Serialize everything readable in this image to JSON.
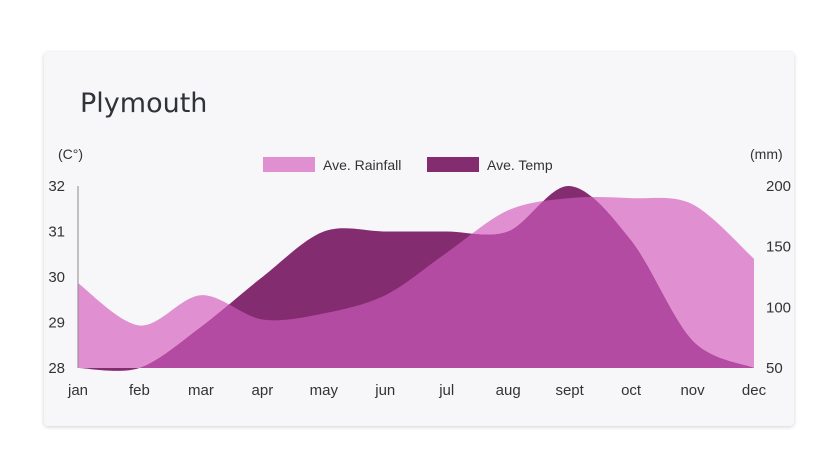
{
  "card": {
    "title": "Plymouth"
  },
  "chart_data": {
    "type": "area",
    "title": "Plymouth",
    "categories": [
      "jan",
      "feb",
      "mar",
      "apr",
      "may",
      "jun",
      "jul",
      "aug",
      "sept",
      "oct",
      "nov",
      "dec"
    ],
    "series": [
      {
        "name": "Ave. Rainfall",
        "axis": "right",
        "color": "#e08fd0",
        "values": [
          120,
          85,
          110,
          90,
          95,
          110,
          145,
          180,
          190,
          190,
          185,
          140
        ]
      },
      {
        "name": "Ave. Temp",
        "axis": "left",
        "color": "#842c70",
        "values": [
          28.0,
          28.0,
          28.9,
          30.0,
          31.0,
          31.0,
          31.0,
          31.0,
          32.0,
          30.8,
          28.6,
          28.0
        ]
      }
    ],
    "overlap_color": "#b44ba2",
    "y_left": {
      "label": "(C°)",
      "min": 28,
      "max": 32,
      "ticks": [
        28,
        29,
        30,
        31,
        32
      ]
    },
    "y_right": {
      "label": "(mm)",
      "min": 50,
      "max": 200,
      "ticks": [
        50,
        100,
        150,
        200
      ]
    },
    "legend_position": "top-center",
    "grid": false
  }
}
